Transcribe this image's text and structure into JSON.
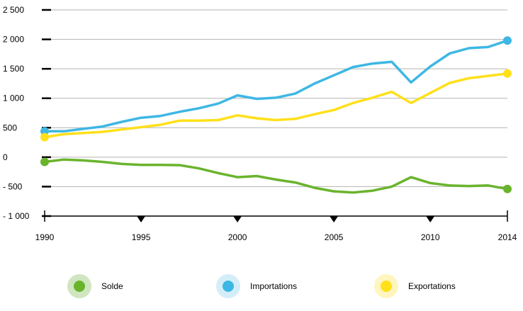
{
  "chart_data": {
    "type": "line",
    "title": "",
    "xlabel": "",
    "ylabel": "",
    "x": [
      1990,
      1991,
      1992,
      1993,
      1994,
      1995,
      1996,
      1997,
      1998,
      1999,
      2000,
      2001,
      2002,
      2003,
      2004,
      2005,
      2006,
      2007,
      2008,
      2009,
      2010,
      2011,
      2012,
      2013,
      2014
    ],
    "x_ticks": [
      "1990",
      "1995",
      "2000",
      "2005",
      "2010",
      "2014"
    ],
    "y_ticks": [
      "2 500",
      "2 000",
      "1 500",
      "1 000",
      "500",
      "0",
      "- 500",
      "- 1 000"
    ],
    "ylim": [
      -1000,
      2500
    ],
    "grid": true,
    "legend_position": "bottom",
    "series": [
      {
        "name": "Importations",
        "color": "#3db7e4",
        "values": [
          440,
          440,
          480,
          520,
          600,
          670,
          700,
          770,
          830,
          910,
          1050,
          990,
          1010,
          1080,
          1250,
          1390,
          1530,
          1590,
          1620,
          1270,
          1540,
          1760,
          1850,
          1870,
          1980
        ]
      },
      {
        "name": "Exportations",
        "color": "#ffe01a",
        "values": [
          340,
          390,
          410,
          430,
          470,
          510,
          550,
          620,
          620,
          630,
          710,
          660,
          630,
          650,
          730,
          800,
          920,
          1010,
          1110,
          920,
          1090,
          1260,
          1340,
          1380,
          1420
        ]
      },
      {
        "name": "Solde",
        "color": "#6ab42d",
        "values": [
          -80,
          -40,
          -55,
          -80,
          -115,
          -130,
          -130,
          -135,
          -190,
          -270,
          -340,
          -320,
          -380,
          -430,
          -520,
          -580,
          -600,
          -570,
          -500,
          -340,
          -440,
          -480,
          -490,
          -480,
          -540
        ]
      }
    ]
  },
  "legend": [
    {
      "label": "Solde",
      "color": "#6ab42d",
      "halo": "#cfe6c0"
    },
    {
      "label": "Importations",
      "color": "#3db7e4",
      "halo": "#d4eef9"
    },
    {
      "label": "Exportations",
      "color": "#ffe01a",
      "halo": "#fff5bf"
    }
  ]
}
